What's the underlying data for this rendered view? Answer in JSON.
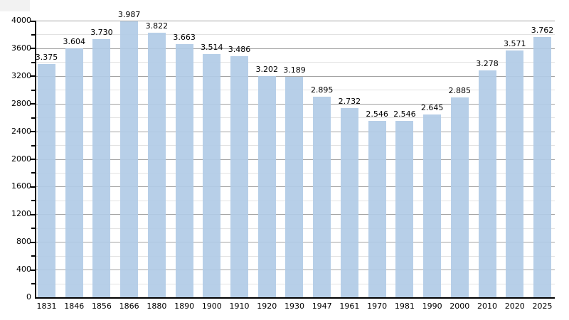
{
  "page": {
    "background": "#ffffff",
    "artifact_color": "#f2f2f2"
  },
  "chart_data": {
    "type": "bar",
    "title": "",
    "xlabel": "",
    "ylabel": "",
    "categories": [
      "1831",
      "1846",
      "1856",
      "1866",
      "1880",
      "1890",
      "1900",
      "1910",
      "1920",
      "1930",
      "1947",
      "1961",
      "1970",
      "1981",
      "1990",
      "2000",
      "2010",
      "2020",
      "2025"
    ],
    "values": [
      3375,
      3604,
      3730,
      3987,
      3822,
      3663,
      3514,
      3486,
      3202,
      3189,
      2895,
      2732,
      2546,
      2546,
      2645,
      2885,
      3278,
      3571,
      3762
    ],
    "value_labels": [
      "3.375",
      "3.604",
      "3.730",
      "3.987",
      "3.822",
      "3.663",
      "3.514",
      "3.486",
      "3.202",
      "3.189",
      "2.895",
      "2.732",
      "2.546",
      "2.546",
      "2.645",
      "2.885",
      "3.278",
      "3.571",
      "3.762"
    ],
    "ylim": [
      0,
      4000
    ],
    "y_major_step": 400,
    "y_minor_step": 200,
    "y_tick_labels": [
      "0",
      "400",
      "800",
      "1200",
      "1600",
      "2000",
      "2400",
      "2800",
      "3200",
      "3600",
      "4000"
    ],
    "grid": "major-and-minor-horizontal",
    "legend": "none",
    "colors": {
      "bar": "#b1cbe6",
      "major_grid": "#a3a3a3",
      "minor_grid": "#e2e2e2",
      "axis": "#000000",
      "text": "#000000"
    }
  }
}
